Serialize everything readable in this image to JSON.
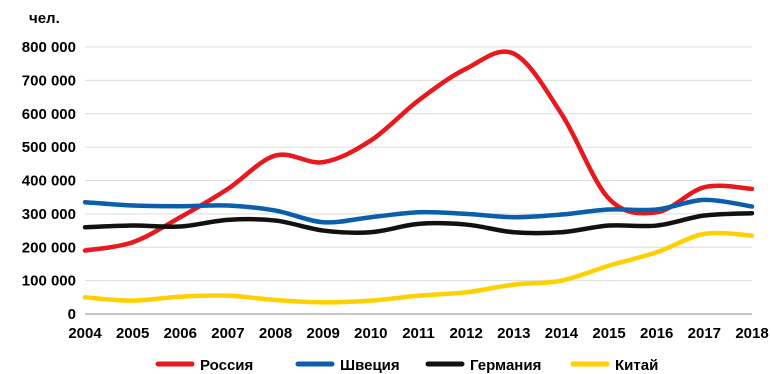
{
  "chart_data": {
    "type": "line",
    "y_unit_label": "чел.",
    "x": [
      "2004",
      "2005",
      "2006",
      "2007",
      "2008",
      "2009",
      "2010",
      "2011",
      "2012",
      "2013",
      "2014",
      "2015",
      "2016",
      "2017",
      "2018"
    ],
    "y_ticks": [
      "0",
      "100 000",
      "200 000",
      "300 000",
      "400 000",
      "500 000",
      "600 000",
      "700 000",
      "800 000"
    ],
    "ylim": [
      0,
      800000
    ],
    "grid": "horizontal",
    "legend_position": "bottom",
    "series": [
      {
        "name": "Россия",
        "color": "#e8191e",
        "values": [
          190000,
          215000,
          290000,
          375000,
          475000,
          455000,
          520000,
          640000,
          735000,
          780000,
          600000,
          345000,
          305000,
          380000,
          375000
        ]
      },
      {
        "name": "Швеция",
        "color": "#0a5eaa",
        "values": [
          335000,
          325000,
          323000,
          325000,
          310000,
          275000,
          290000,
          305000,
          300000,
          290000,
          298000,
          313000,
          313000,
          342000,
          322000
        ]
      },
      {
        "name": "Германия",
        "color": "#111111",
        "values": [
          260000,
          265000,
          262000,
          282000,
          280000,
          250000,
          245000,
          270000,
          268000,
          245000,
          245000,
          265000,
          265000,
          295000,
          302000
        ]
      },
      {
        "name": "Китай",
        "color": "#ffd000",
        "values": [
          50000,
          40000,
          52000,
          55000,
          42000,
          35000,
          40000,
          55000,
          65000,
          88000,
          100000,
          145000,
          185000,
          240000,
          235000
        ]
      }
    ]
  }
}
